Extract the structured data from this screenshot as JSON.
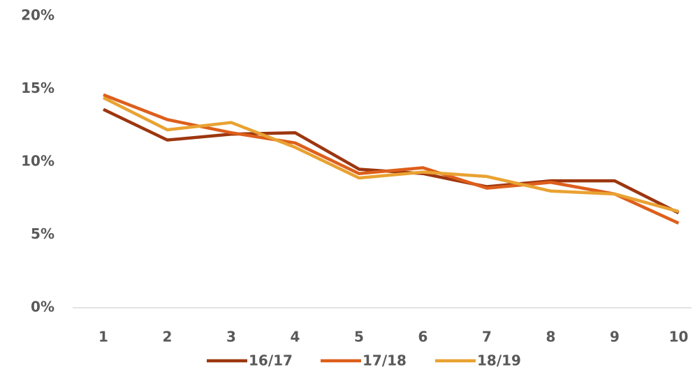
{
  "chart_data": {
    "type": "line",
    "categories": [
      "1",
      "2",
      "3",
      "4",
      "5",
      "6",
      "7",
      "8",
      "9",
      "10"
    ],
    "series": [
      {
        "name": "16/17",
        "color": "#9c360f",
        "values": [
          13.6,
          11.5,
          11.9,
          12.0,
          9.5,
          9.2,
          8.3,
          8.7,
          8.7,
          6.5
        ]
      },
      {
        "name": "17/18",
        "color": "#dd5f1c",
        "values": [
          14.6,
          12.9,
          12.0,
          11.3,
          9.2,
          9.6,
          8.2,
          8.6,
          7.8,
          5.8
        ]
      },
      {
        "name": "18/19",
        "color": "#e9a232",
        "values": [
          14.4,
          12.2,
          12.7,
          11.0,
          8.9,
          9.3,
          9.0,
          8.0,
          7.8,
          6.6
        ]
      }
    ],
    "ylim": [
      0,
      20
    ],
    "yticks": [
      {
        "value": 0,
        "label": "0%"
      },
      {
        "value": 5,
        "label": "5%"
      },
      {
        "value": 10,
        "label": "10%"
      },
      {
        "value": 15,
        "label": "15%"
      },
      {
        "value": 20,
        "label": "20%"
      }
    ],
    "grid": false,
    "legend": "bottom"
  }
}
